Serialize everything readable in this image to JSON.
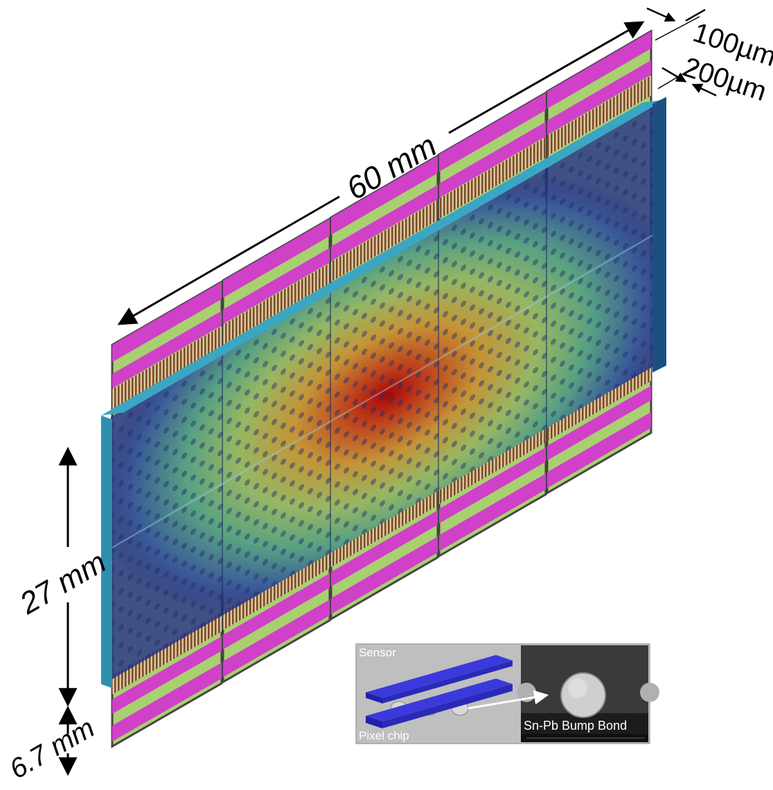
{
  "dimensions": {
    "width_label": "60 mm",
    "height_label": "27 mm",
    "chip_extension_label": "6.7 mm",
    "thickness_top_label": "100µm",
    "thickness_bottom_label": "200µm"
  },
  "inset": {
    "sensor_label": "Sensor",
    "pixel_chip_label": "Pixel chip",
    "bump_bond_label": "Sn-Pb Bump Bond"
  },
  "colors": {
    "sensor_edge": "#3aa6c4",
    "sensor_side": "#1c4f80",
    "heat_center": "#b00000",
    "heat_mid": "#e0c040",
    "heat_outer": "#6ab07a",
    "heat_background": "#28348a",
    "chip_magenta": "#d040c8",
    "chip_green": "#a8d070",
    "chip_bronze": "#8a5a30",
    "inset_layer": "#3a3adc"
  }
}
